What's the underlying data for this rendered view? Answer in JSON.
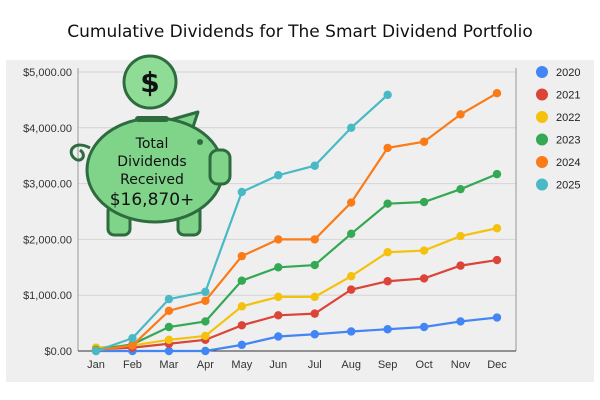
{
  "title": "Cumulative Dividends for The Smart Dividend Portfolio",
  "piggy": {
    "coin_symbol": "$",
    "line1": "Total",
    "line2": "Dividends",
    "line3": "Received",
    "amount": "$16,870+",
    "colors": {
      "body": "#7fd48a",
      "outline": "#2e6b3f",
      "coin": "#8fdc97"
    }
  },
  "chart_data": {
    "type": "line",
    "title": "Cumulative Dividends for The Smart Dividend Portfolio",
    "xlabel": "",
    "ylabel": "",
    "categories": [
      "Jan",
      "Feb",
      "Mar",
      "Apr",
      "May",
      "Jun",
      "Jul",
      "Aug",
      "Sep",
      "Oct",
      "Nov",
      "Dec"
    ],
    "ylim": [
      0,
      5000
    ],
    "yticks": [
      0,
      1000,
      2000,
      3000,
      4000,
      5000
    ],
    "ytick_labels": [
      "$0.00",
      "$1,000.00",
      "$2,000.00",
      "$3,000.00",
      "$4,000.00",
      "$5,000.00"
    ],
    "grid": true,
    "legend": "right",
    "series": [
      {
        "name": "2020",
        "color": "#4285f4",
        "values": [
          0,
          0,
          0,
          0,
          110,
          260,
          300,
          350,
          390,
          430,
          530,
          600
        ]
      },
      {
        "name": "2021",
        "color": "#db4437",
        "values": [
          30,
          60,
          130,
          200,
          460,
          640,
          670,
          1100,
          1250,
          1300,
          1530,
          1630
        ]
      },
      {
        "name": "2022",
        "color": "#f4c20d",
        "values": [
          60,
          100,
          200,
          270,
          800,
          970,
          970,
          1340,
          1770,
          1800,
          2060,
          2200
        ]
      },
      {
        "name": "2023",
        "color": "#34a853",
        "values": [
          20,
          120,
          430,
          530,
          1260,
          1500,
          1540,
          2100,
          2640,
          2670,
          2900,
          3170
        ]
      },
      {
        "name": "2024",
        "color": "#fa7b17",
        "values": [
          10,
          100,
          720,
          900,
          1700,
          2000,
          2000,
          2660,
          3640,
          3750,
          4240,
          4620
        ]
      },
      {
        "name": "2025",
        "color": "#4ab9c6",
        "values": [
          0,
          230,
          930,
          1060,
          2850,
          3150,
          3320,
          4000,
          4590,
          null,
          null,
          null
        ]
      }
    ]
  }
}
